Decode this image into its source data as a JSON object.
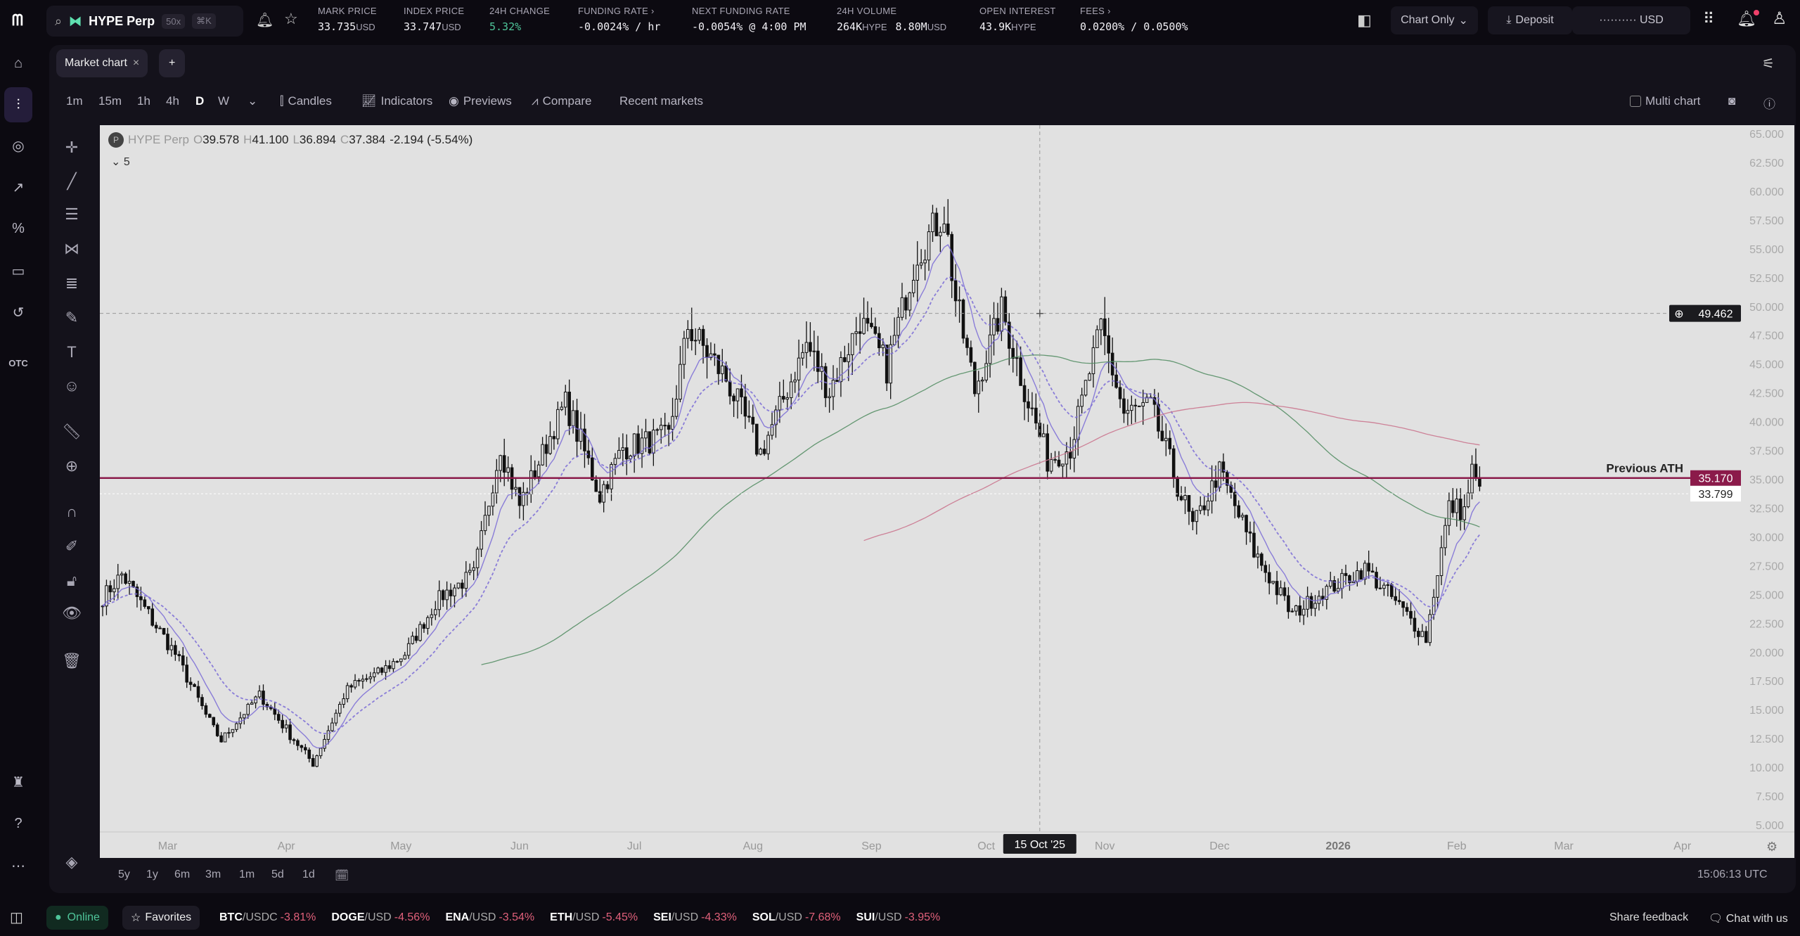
{
  "header": {
    "market": "HYPE Perp",
    "leverage": "50x",
    "shortcut": "⌘K",
    "stats": [
      {
        "label": "MARK PRICE",
        "value": "33.735",
        "unit": "USD"
      },
      {
        "label": "INDEX PRICE",
        "value": "33.747",
        "unit": "USD"
      },
      {
        "label": "24H CHANGE",
        "value": "5.32%",
        "unit": "",
        "color": "#4fc59a"
      },
      {
        "label": "FUNDING RATE ›",
        "value": "-0.0024% / hr",
        "unit": ""
      },
      {
        "label": "NEXT FUNDING RATE",
        "value": "-0.0054% @ 4:00 PM",
        "unit": ""
      },
      {
        "label": "24H VOLUME",
        "value": "264K",
        "unit": "HYPE",
        "value2": "8.80M",
        "unit2": "USD"
      },
      {
        "label": "OPEN INTEREST",
        "value": "43.9K",
        "unit": "HYPE"
      },
      {
        "label": "FEES ›",
        "value": "0.0200% / 0.0500%",
        "unit": ""
      }
    ],
    "view_mode": "Chart Only",
    "deposit": "Deposit",
    "balance": "·········· USD"
  },
  "sidebar": {
    "otc": "OTC"
  },
  "tabs": {
    "active": "Market chart",
    "add": "+"
  },
  "toolbar": {
    "intervals": [
      "1m",
      "15m",
      "1h",
      "4h",
      "D",
      "W"
    ],
    "active_interval": "D",
    "candles": "Candles",
    "indicators": "Indicators",
    "previews": "Previews",
    "compare": "Compare",
    "recent": "Recent markets",
    "multi_chart": "Multi chart"
  },
  "legend": {
    "symbol": "HYPE Perp",
    "o_label": "O",
    "o": "39.578",
    "h_label": "H",
    "h": "41.100",
    "l_label": "L",
    "l": "36.894",
    "c_label": "C",
    "c": "37.384",
    "change": "-2.194 (-5.54%)",
    "indicator_count": "5"
  },
  "ranges": [
    "5y",
    "1y",
    "6m",
    "3m",
    "1m",
    "5d",
    "1d"
  ],
  "clock": "15:06:13 UTC",
  "footer": {
    "status": "Online",
    "favorites": "Favorites",
    "tickers": [
      {
        "sym": "BTC",
        "quote": "/USDC",
        "change": "-3.81%"
      },
      {
        "sym": "DOGE",
        "quote": "/USD",
        "change": "-4.56%"
      },
      {
        "sym": "ENA",
        "quote": "/USD",
        "change": "-3.54%"
      },
      {
        "sym": "ETH",
        "quote": "/USD",
        "change": "-5.45%"
      },
      {
        "sym": "SEI",
        "quote": "/USD",
        "change": "-4.33%"
      },
      {
        "sym": "SOL",
        "quote": "/USD",
        "change": "-7.68%"
      },
      {
        "sym": "SUI",
        "quote": "/USD",
        "change": "-3.95%"
      }
    ],
    "share": "Share feedback",
    "chat": "Chat with us"
  },
  "chart_data": {
    "type": "candlestick",
    "ylim": [
      5,
      65
    ],
    "y_ticks": [
      "65.000",
      "62.500",
      "60.000",
      "57.500",
      "55.000",
      "52.500",
      "50.000",
      "47.500",
      "45.000",
      "42.500",
      "40.000",
      "37.500",
      "35.000",
      "32.500",
      "30.000",
      "27.500",
      "25.000",
      "22.500",
      "20.000",
      "17.500",
      "15.000",
      "12.500",
      "10.000",
      "7.500",
      "5.000"
    ],
    "x_ticks": [
      {
        "label": "Mar",
        "date": "2025-03-01"
      },
      {
        "label": "Apr",
        "date": "2025-04-01"
      },
      {
        "label": "May",
        "date": "2025-05-01"
      },
      {
        "label": "Jun",
        "date": "2025-06-01"
      },
      {
        "label": "Jul",
        "date": "2025-07-01"
      },
      {
        "label": "Aug",
        "date": "2025-08-01"
      },
      {
        "label": "Sep",
        "date": "2025-09-01"
      },
      {
        "label": "Oct",
        "date": "2025-10-01"
      },
      {
        "label": "Nov",
        "date": "2025-11-01"
      },
      {
        "label": "Dec",
        "date": "2025-12-01"
      },
      {
        "label": "2026",
        "date": "2026-01-01"
      },
      {
        "label": "Feb",
        "date": "2026-02-01"
      },
      {
        "label": "Mar",
        "date": "2026-03-01"
      },
      {
        "label": "Apr",
        "date": "2026-04-01"
      }
    ],
    "x_range": [
      "2025-02-12",
      "2026-04-20"
    ],
    "approx_closes": [
      [
        "2025-02-12",
        24.8
      ],
      [
        "2025-02-17",
        26.8
      ],
      [
        "2025-02-25",
        22.8
      ],
      [
        "2025-03-03",
        19.9
      ],
      [
        "2025-03-12",
        13.9
      ],
      [
        "2025-03-15",
        12.4
      ],
      [
        "2025-03-25",
        16.4
      ],
      [
        "2025-04-02",
        12.9
      ],
      [
        "2025-04-08",
        10.4
      ],
      [
        "2025-04-17",
        16.9
      ],
      [
        "2025-04-26",
        18.4
      ],
      [
        "2025-05-02",
        19.9
      ],
      [
        "2025-05-11",
        24.8
      ],
      [
        "2025-05-20",
        26.8
      ],
      [
        "2025-05-27",
        37.8
      ],
      [
        "2025-06-01",
        32.8
      ],
      [
        "2025-06-13",
        41.8
      ],
      [
        "2025-06-22",
        33.8
      ],
      [
        "2025-06-28",
        37.8
      ],
      [
        "2025-07-10",
        38.8
      ],
      [
        "2025-07-15",
        48.3
      ],
      [
        "2025-07-25",
        43.8
      ],
      [
        "2025-08-03",
        37.3
      ],
      [
        "2025-08-15",
        46.8
      ],
      [
        "2025-08-21",
        42.8
      ],
      [
        "2025-08-29",
        48.8
      ],
      [
        "2025-09-05",
        44.8
      ],
      [
        "2025-09-13",
        54.7
      ],
      [
        "2025-09-20",
        58.2
      ],
      [
        "2025-09-23",
        50.7
      ],
      [
        "2025-09-28",
        42.8
      ],
      [
        "2025-10-05",
        49.8
      ],
      [
        "2025-10-13",
        40.8
      ],
      [
        "2025-10-17",
        36.8
      ],
      [
        "2025-10-23",
        37.8
      ],
      [
        "2025-10-31",
        48.3
      ],
      [
        "2025-11-06",
        40.8
      ],
      [
        "2025-11-13",
        41.3
      ],
      [
        "2025-11-24",
        30.8
      ],
      [
        "2025-12-01",
        35.8
      ],
      [
        "2025-12-10",
        28.8
      ],
      [
        "2025-12-20",
        23.3
      ],
      [
        "2025-12-28",
        25.3
      ],
      [
        "2026-01-08",
        27.3
      ],
      [
        "2026-01-15",
        24.8
      ],
      [
        "2026-01-24",
        21.3
      ],
      [
        "2026-01-30",
        32.8
      ],
      [
        "2026-02-03",
        32.3
      ],
      [
        "2026-02-05",
        35.8
      ],
      [
        "2026-02-07",
        33.8
      ]
    ],
    "horizontal_line": {
      "label": "Previous ATH",
      "price": "35.170",
      "color": "#8b1a4a"
    },
    "last_price": "33.799",
    "crosshair": {
      "price": "49.462",
      "date": "15 Oct '25"
    },
    "colors": {
      "candle": "#111111",
      "ema": "#7a6bd6",
      "sma_long": "#4e8a5e",
      "sma_longer": "#c9708a",
      "background": "#e1e1e1"
    }
  }
}
